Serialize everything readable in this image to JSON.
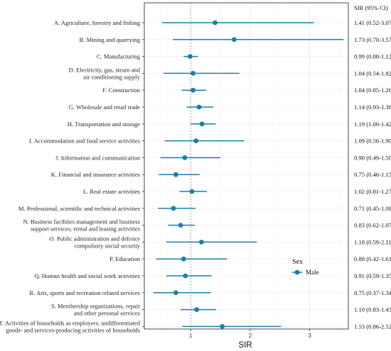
{
  "chart_data": {
    "type": "forest",
    "xlabel": "SIR",
    "ci_header": "SIR (95% CI)",
    "x_ticks": [
      1,
      2,
      3
    ],
    "xlim": [
      0.22,
      3.65
    ],
    "reference_line": 1,
    "grid": true,
    "legend": {
      "title": "Sex",
      "items": [
        "Male"
      ],
      "placement": "lower-right"
    },
    "colors": {
      "series": "#1a7fa8",
      "panel_border": "#333333",
      "grid": "#ebebeb",
      "reference": "#888888"
    },
    "rows": [
      {
        "label": [
          "A. Agriculture, forestry and fishing"
        ],
        "est": 1.41,
        "lo": 0.52,
        "hi": 3.07,
        "ci_text": "1.41 (0.52-3.07)"
      },
      {
        "label": [
          "B. Mining and quarrying"
        ],
        "est": 1.73,
        "lo": 0.7,
        "hi": 3.57,
        "ci_text": "1.73 (0.70-3.57)"
      },
      {
        "label": [
          "C. Manufacturing"
        ],
        "est": 0.99,
        "lo": 0.88,
        "hi": 1.12,
        "ci_text": "0.99 (0.88-1.12)"
      },
      {
        "label": [
          "D. Electricity, gas, steam and",
          "air conditioning supply"
        ],
        "est": 1.04,
        "lo": 0.54,
        "hi": 1.82,
        "ci_text": "1.04 (0.54-1.82)"
      },
      {
        "label": [
          "F. Construction"
        ],
        "est": 1.04,
        "lo": 0.85,
        "hi": 1.26,
        "ci_text": "1.04 (0.85-1.26)"
      },
      {
        "label": [
          "G. Wholesale and retail trade"
        ],
        "est": 1.14,
        "lo": 0.93,
        "hi": 1.38,
        "ci_text": "1.14 (0.93-1.38)"
      },
      {
        "label": [
          "H. Transportation and storage"
        ],
        "est": 1.19,
        "lo": 1.0,
        "hi": 1.42,
        "ci_text": "1.19 (1.00-1.42)"
      },
      {
        "label": [
          "I. Accommodation and food service activities"
        ],
        "est": 1.09,
        "lo": 0.56,
        "hi": 1.9,
        "ci_text": "1.09 (0.56-1.90)"
      },
      {
        "label": [
          "J. Information and communication"
        ],
        "est": 0.9,
        "lo": 0.49,
        "hi": 1.5,
        "ci_text": "0.90 (0.49-1.50)"
      },
      {
        "label": [
          "K. Financial and insurance activities"
        ],
        "est": 0.75,
        "lo": 0.46,
        "hi": 1.15,
        "ci_text": "0.75 (0.46-1.15)"
      },
      {
        "label": [
          "L. Real estate activities"
        ],
        "est": 1.02,
        "lo": 0.81,
        "hi": 1.27,
        "ci_text": "1.02 (0.81-1.27)"
      },
      {
        "label": [
          "M. Professional, scientific and technical activities"
        ],
        "est": 0.71,
        "lo": 0.45,
        "hi": 1.08,
        "ci_text": "0.71 (0.45-1.08)"
      },
      {
        "label": [
          "N. Business facilities management and business",
          "support services; rental and leasing activities"
        ],
        "est": 0.83,
        "lo": 0.62,
        "hi": 1.07,
        "ci_text": "0.83 (0.62-1.07)"
      },
      {
        "label": [
          "O. Public administration and defence",
          "compulsory social security"
        ],
        "est": 1.18,
        "lo": 0.59,
        "hi": 2.11,
        "ci_text": "1.18 (0.59-2.11)"
      },
      {
        "label": [
          "P. Education"
        ],
        "est": 0.88,
        "lo": 0.42,
        "hi": 1.61,
        "ci_text": "0.88 (0.42-1.61)"
      },
      {
        "label": [
          "Q. Human health and social work activities"
        ],
        "est": 0.91,
        "lo": 0.59,
        "hi": 1.35,
        "ci_text": "0.91 (0.59-1.35)"
      },
      {
        "label": [
          "R. Arts, sports and recreation related services"
        ],
        "est": 0.75,
        "lo": 0.37,
        "hi": 1.34,
        "ci_text": "0.75 (0.37-1.34)"
      },
      {
        "label": [
          "S. Membership organizations, repair",
          "and other personal services"
        ],
        "est": 1.1,
        "lo": 0.83,
        "hi": 1.43,
        "ci_text": "1.10 (0.83-1.43)"
      },
      {
        "label": [
          "T. Activities of households as employers; undifferentiated",
          "goods- and services-producing activities of households"
        ],
        "est": 1.53,
        "lo": 0.86,
        "hi": 2.52,
        "ci_text": "1.53 (0.86-2.52)"
      }
    ]
  }
}
